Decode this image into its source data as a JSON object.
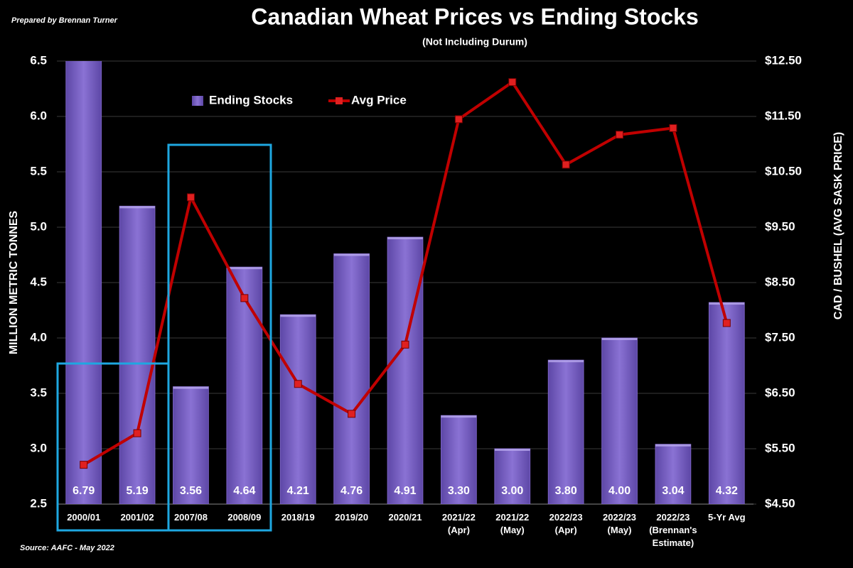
{
  "chart_data": {
    "type": "bar-line",
    "credit": "Prepared by Brennan Turner",
    "title": "Canadian Wheat Prices vs Ending Stocks",
    "subtitle": "(Not Including Durum)",
    "ylabel": "MILLION METRIC TONNES",
    "y2label": "CAD / BUSHEL (AVG SASK PRICE)",
    "source": "Source: AAFC -  May 2022",
    "categories": [
      "2000/01",
      "2001/02",
      "2007/08",
      "2008/09",
      "2018/19",
      "2019/20",
      "2020/21",
      "2021/22\n(Apr)",
      "2021/22\n(May)",
      "2022/23\n(Apr)",
      "2022/23\n(May)",
      "2022/23\n(Brennan's\nEstimate)",
      "5-Yr Avg"
    ],
    "series": [
      {
        "name": "Ending Stocks",
        "type": "bar",
        "color": "#7b62c4",
        "axis": "y",
        "values": [
          6.79,
          5.19,
          3.56,
          4.64,
          4.21,
          4.76,
          4.91,
          3.3,
          3.0,
          3.8,
          4.0,
          3.04,
          4.32
        ],
        "value_labels": [
          "6.79",
          "5.19",
          "3.56",
          "4.64",
          "4.21",
          "4.76",
          "4.91",
          "3.30",
          "3.00",
          "3.80",
          "4.00",
          "3.04",
          "4.32"
        ]
      },
      {
        "name": "Avg Price",
        "type": "line",
        "color": "#c00000",
        "axis": "y2",
        "values": [
          5.21,
          5.78,
          10.04,
          8.22,
          6.67,
          6.13,
          7.38,
          11.45,
          12.12,
          10.63,
          11.17,
          11.29,
          7.77
        ]
      }
    ],
    "ylim": [
      2.5,
      6.5
    ],
    "yticks": [
      2.5,
      {
        "value": 3,
        "label": "3.0"
      },
      3.5,
      {
        "value": 4,
        "label": "4.0"
      },
      4.5,
      {
        "value": 5,
        "label": "5.0"
      },
      5.5,
      {
        "value": 6,
        "label": "6.0"
      },
      6.5
    ],
    "y2lim": [
      4.5,
      12.5
    ],
    "y2ticks": [
      {
        "value": 4.5,
        "label": "$4.50"
      },
      {
        "value": 5.5,
        "label": "$5.50"
      },
      {
        "value": 6.5,
        "label": "$6.50"
      },
      {
        "value": 7.5,
        "label": "$7.50"
      },
      {
        "value": 8.5,
        "label": "$8.50"
      },
      {
        "value": 9.5,
        "label": "$9.50"
      },
      {
        "value": 10.5,
        "label": "$10.50"
      },
      {
        "value": 11.5,
        "label": "$11.50"
      },
      {
        "value": 12.5,
        "label": "$12.50"
      }
    ],
    "grid": true,
    "legend": "top"
  }
}
